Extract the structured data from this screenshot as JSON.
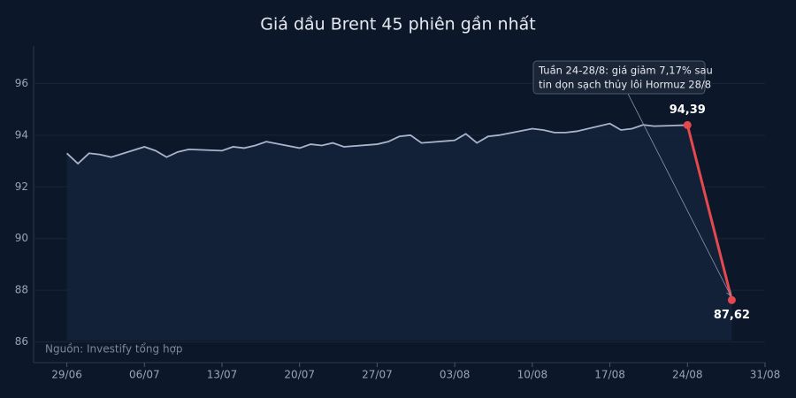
{
  "chart_data": {
    "type": "line",
    "title": "Giá dầu Brent 45 phiên gần nhất",
    "note": "Nguồn: Investify tổng hợp",
    "annotation": [
      "Tuần 24-28/8: giá giảm 7,17% sau",
      "tin dọn sạch thủy lôi Hormuz 28/8"
    ],
    "series": [
      {
        "color": "#a9b4cc",
        "x": [
          "29/06",
          "30/06",
          "01/07",
          "02/07",
          "03/07",
          "06/07",
          "07/07",
          "08/07",
          "09/07",
          "10/07",
          "13/07",
          "14/07",
          "15/07",
          "16/07",
          "17/07",
          "20/07",
          "21/07",
          "22/07",
          "23/07",
          "24/07",
          "27/07",
          "28/07",
          "29/07",
          "30/07",
          "31/07",
          "03/08",
          "04/08",
          "05/08",
          "06/08",
          "07/08",
          "10/08",
          "11/08",
          "12/08",
          "13/08",
          "14/08",
          "17/08",
          "18/08",
          "19/08",
          "20/08",
          "21/08",
          "24/08"
        ],
        "values": [
          93.3,
          92.9,
          93.3,
          93.25,
          93.15,
          93.55,
          93.4,
          93.15,
          93.35,
          93.45,
          93.4,
          93.55,
          93.5,
          93.6,
          93.75,
          93.5,
          93.65,
          93.6,
          93.7,
          93.55,
          93.65,
          93.75,
          93.95,
          94.0,
          93.7,
          93.8,
          94.05,
          93.7,
          93.95,
          94.0,
          94.25,
          94.2,
          94.1,
          94.1,
          94.15,
          94.45,
          94.2,
          94.25,
          94.4,
          94.35,
          94.39
        ]
      },
      {
        "color": "#e5484d",
        "x": [
          "24/08",
          "28/08"
        ],
        "values": [
          94.39,
          87.62
        ],
        "value_labels": [
          "94,39",
          "87,62"
        ]
      }
    ],
    "xlim": [
      "26/06",
      "31/08"
    ],
    "xticks": [
      "29/06",
      "06/07",
      "13/07",
      "20/07",
      "27/07",
      "03/08",
      "10/08",
      "17/08",
      "24/08",
      "31/08"
    ],
    "ylim": [
      85.2,
      97.45
    ],
    "yticks": [
      86,
      88,
      90,
      92,
      94,
      96
    ],
    "grid": true
  }
}
